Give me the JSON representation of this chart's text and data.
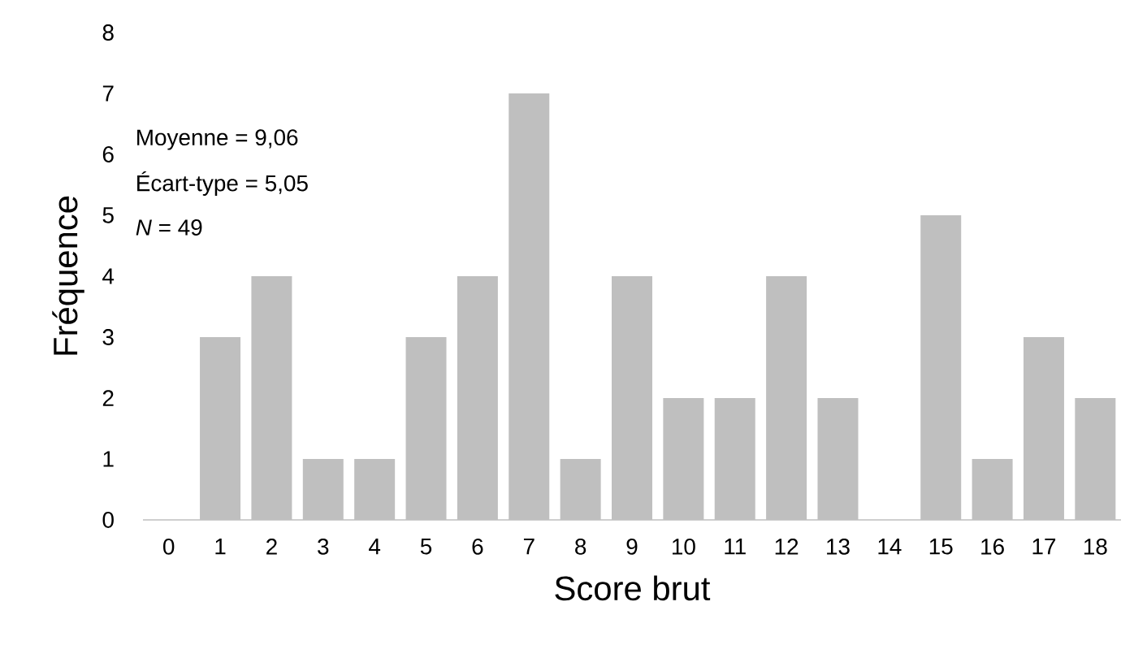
{
  "chart_data": {
    "type": "bar",
    "xlabel": "Score brut",
    "ylabel": "Fréquence",
    "categories": [
      "0",
      "1",
      "2",
      "3",
      "4",
      "5",
      "6",
      "7",
      "8",
      "9",
      "10",
      "11",
      "12",
      "13",
      "14",
      "15",
      "16",
      "17",
      "18"
    ],
    "values": [
      0,
      3,
      4,
      1,
      1,
      3,
      4,
      7,
      1,
      4,
      2,
      2,
      4,
      2,
      0,
      5,
      1,
      3,
      2
    ],
    "color": "#bfbfbf",
    "ylim": [
      0,
      8
    ],
    "yticks": [
      0,
      1,
      2,
      3,
      4,
      5,
      6,
      7,
      8
    ],
    "annotations": [
      "Moyenne = 9,06",
      "Écart-type = 5,05",
      "*N* = 49"
    ]
  }
}
